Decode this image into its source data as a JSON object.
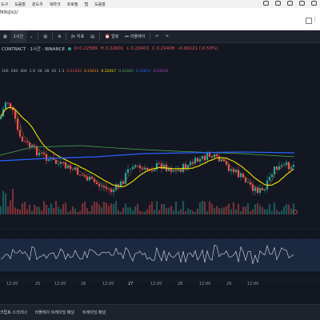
{
  "menubar": {
    "items": [
      "도구",
      "도움말",
      "윈도우",
      "북마크",
      "프로필",
      "탭",
      "도움말"
    ]
  },
  "urlbar": {
    "url": "N9qlxz/"
  },
  "toolbar": {
    "items": [
      {
        "label": "1시간",
        "active": true
      },
      {
        "label": "지표"
      },
      {
        "label": "얼럿"
      },
      {
        "label": "리플레이"
      }
    ]
  },
  "chart": {
    "symbol_label": "CONTRACT · 1시간 · BINANCE",
    "ohlc": [
      "O 0.22589",
      "H 0.22601",
      "L 0.22403",
      "C 0.22408",
      "-0.00121 (-0.53%)"
    ],
    "indicator_line": [
      "100",
      "200",
      "400",
      "1.9",
      "28",
      "28",
      "20",
      "1.3",
      "0.22303",
      "0.23411",
      "0.22417",
      "0.22403",
      "0.22872",
      "0.23930"
    ],
    "colors": {
      "up": "#26a69a",
      "down": "#ef5350",
      "ma_yellow": "#f7e200",
      "ma_blue": "#2962ff",
      "ma_green": "#4caf50",
      "ma_orange": "#c56a2f",
      "rsi_line": "#e0e3eb",
      "bg": "#131722"
    },
    "x_labels": [
      "12:00",
      "25",
      "12:00",
      "26",
      "12:00",
      "27",
      "12:00",
      "28",
      "12:00",
      "29",
      "12:00"
    ]
  },
  "bottombar": {
    "tabs": [
      "크립토 스크리너",
      "리플레이 트레이딩 패널",
      "트레이딩 패널"
    ]
  }
}
